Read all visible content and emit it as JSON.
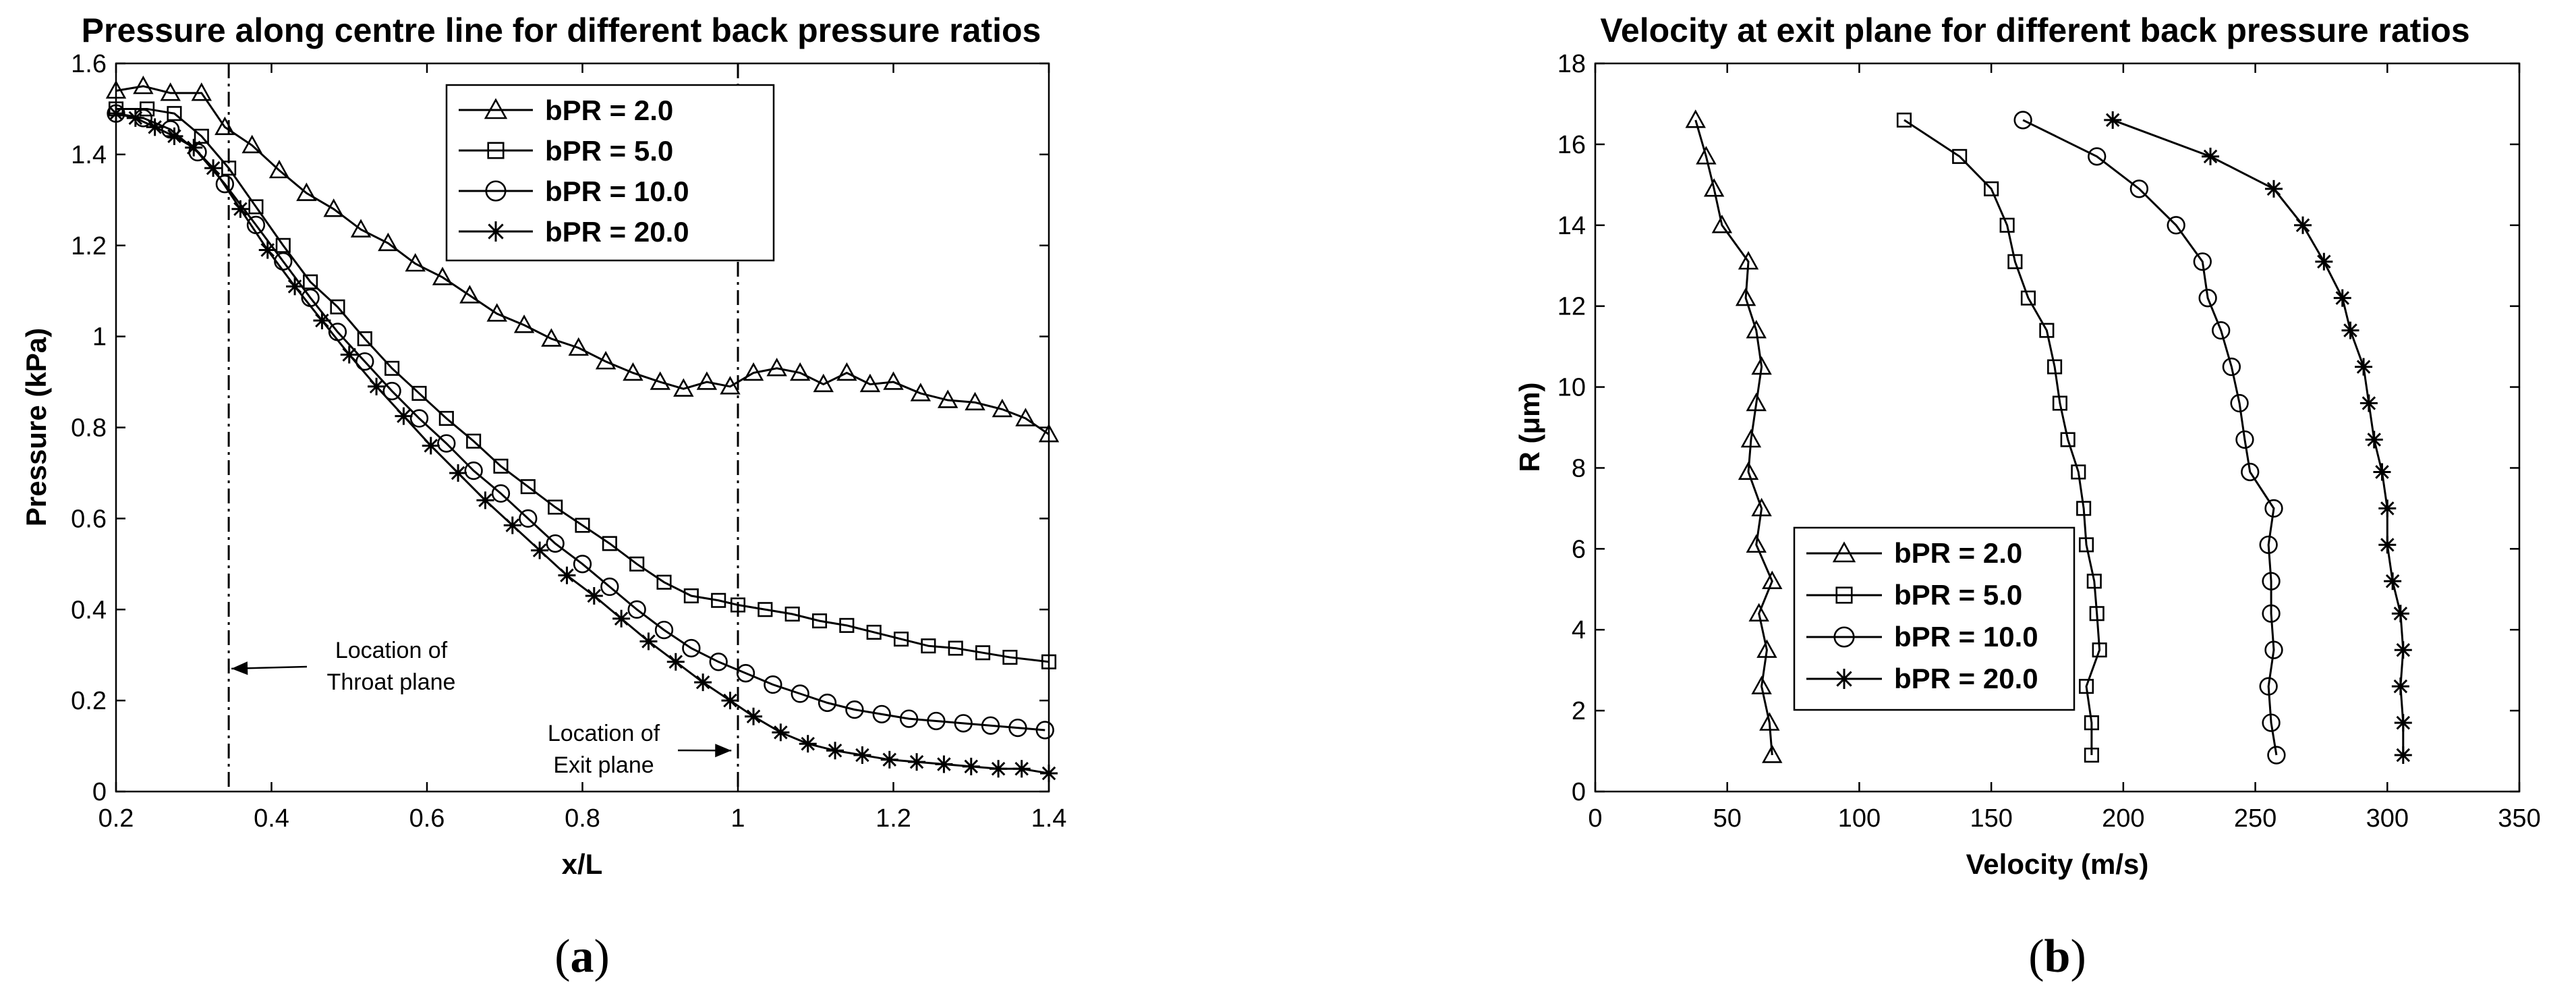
{
  "chart_data": [
    {
      "type": "line",
      "title": "Pressure along centre line for different back pressure ratios",
      "xlabel": "x/L",
      "ylabel": "Pressure (kPa)",
      "xlim": [
        0.2,
        1.4
      ],
      "ylim": [
        0,
        1.6
      ],
      "xticks": [
        0.2,
        0.4,
        0.6,
        0.8,
        1.0,
        1.2,
        1.4
      ],
      "xtick_labels": [
        "0.2",
        "0.4",
        "0.6",
        "0.8",
        "1",
        "1.2",
        "1.4"
      ],
      "yticks": [
        0,
        0.2,
        0.4,
        0.6,
        0.8,
        1.0,
        1.2,
        1.4,
        1.6
      ],
      "ytick_labels": [
        "0",
        "0.2",
        "0.4",
        "0.6",
        "0.8",
        "1",
        "1.2",
        "1.4",
        "1.6"
      ],
      "legend_position": "top-right",
      "grid": false,
      "caption_letter": "a",
      "vertical_lines": [
        0.345,
        1.0
      ],
      "annotations": [
        {
          "lines": [
            "Location of",
            "Throat plane"
          ],
          "x": 0.52,
          "y": 0.28,
          "arrow_to": [
            0.345,
            0.27
          ]
        },
        {
          "lines": [
            "Location of",
            "Exit plane"
          ],
          "x": 0.86,
          "y": 0.14,
          "arrow_to": [
            0.995,
            0.09
          ]
        }
      ],
      "series": [
        {
          "name": "bPR = 2.0",
          "marker": "triangle",
          "x": [
            0.2,
            0.235,
            0.27,
            0.31,
            0.34,
            0.375,
            0.41,
            0.445,
            0.48,
            0.515,
            0.55,
            0.585,
            0.62,
            0.655,
            0.69,
            0.725,
            0.76,
            0.795,
            0.83,
            0.865,
            0.9,
            0.93,
            0.96,
            0.99,
            1.02,
            1.05,
            1.08,
            1.11,
            1.14,
            1.17,
            1.2,
            1.235,
            1.27,
            1.305,
            1.34,
            1.37,
            1.4
          ],
          "y": [
            1.54,
            1.55,
            1.535,
            1.535,
            1.46,
            1.42,
            1.365,
            1.315,
            1.28,
            1.235,
            1.205,
            1.16,
            1.13,
            1.09,
            1.05,
            1.025,
            0.995,
            0.975,
            0.945,
            0.92,
            0.9,
            0.885,
            0.9,
            0.89,
            0.92,
            0.93,
            0.92,
            0.895,
            0.92,
            0.895,
            0.9,
            0.875,
            0.86,
            0.855,
            0.84,
            0.82,
            0.785
          ]
        },
        {
          "name": "bPR = 5.0",
          "marker": "square",
          "x": [
            0.2,
            0.24,
            0.275,
            0.31,
            0.345,
            0.38,
            0.415,
            0.45,
            0.485,
            0.52,
            0.555,
            0.59,
            0.625,
            0.66,
            0.695,
            0.73,
            0.765,
            0.8,
            0.835,
            0.87,
            0.905,
            0.94,
            0.975,
            1.0,
            1.035,
            1.07,
            1.105,
            1.14,
            1.175,
            1.21,
            1.245,
            1.28,
            1.315,
            1.35,
            1.4
          ],
          "y": [
            1.5,
            1.5,
            1.49,
            1.44,
            1.37,
            1.285,
            1.2,
            1.12,
            1.065,
            0.995,
            0.93,
            0.875,
            0.82,
            0.77,
            0.715,
            0.67,
            0.625,
            0.585,
            0.545,
            0.5,
            0.46,
            0.43,
            0.42,
            0.41,
            0.4,
            0.39,
            0.375,
            0.365,
            0.35,
            0.335,
            0.32,
            0.315,
            0.305,
            0.295,
            0.285
          ]
        },
        {
          "name": "bPR = 10.0",
          "marker": "circle",
          "x": [
            0.2,
            0.235,
            0.27,
            0.305,
            0.34,
            0.38,
            0.415,
            0.45,
            0.485,
            0.52,
            0.555,
            0.59,
            0.625,
            0.66,
            0.695,
            0.73,
            0.765,
            0.8,
            0.835,
            0.87,
            0.905,
            0.94,
            0.975,
            1.01,
            1.045,
            1.08,
            1.115,
            1.15,
            1.185,
            1.22,
            1.255,
            1.29,
            1.325,
            1.36,
            1.395
          ],
          "y": [
            1.49,
            1.48,
            1.455,
            1.405,
            1.335,
            1.245,
            1.165,
            1.085,
            1.01,
            0.945,
            0.88,
            0.82,
            0.765,
            0.705,
            0.655,
            0.6,
            0.545,
            0.5,
            0.45,
            0.4,
            0.355,
            0.315,
            0.285,
            0.26,
            0.235,
            0.215,
            0.195,
            0.18,
            0.17,
            0.16,
            0.155,
            0.15,
            0.145,
            0.14,
            0.135
          ]
        },
        {
          "name": "bPR = 20.0",
          "marker": "star",
          "x": [
            0.2,
            0.225,
            0.25,
            0.275,
            0.3,
            0.325,
            0.36,
            0.395,
            0.43,
            0.465,
            0.5,
            0.535,
            0.57,
            0.605,
            0.64,
            0.675,
            0.71,
            0.745,
            0.78,
            0.815,
            0.85,
            0.885,
            0.92,
            0.955,
            0.99,
            1.02,
            1.055,
            1.09,
            1.125,
            1.16,
            1.195,
            1.23,
            1.265,
            1.3,
            1.335,
            1.365,
            1.4
          ],
          "y": [
            1.49,
            1.48,
            1.46,
            1.44,
            1.415,
            1.37,
            1.28,
            1.19,
            1.11,
            1.035,
            0.96,
            0.89,
            0.825,
            0.76,
            0.7,
            0.64,
            0.585,
            0.53,
            0.475,
            0.43,
            0.38,
            0.33,
            0.285,
            0.24,
            0.2,
            0.165,
            0.13,
            0.105,
            0.09,
            0.08,
            0.07,
            0.065,
            0.06,
            0.055,
            0.05,
            0.05,
            0.04
          ]
        }
      ]
    },
    {
      "type": "line",
      "title": "Velocity at exit plane for different back pressure ratios",
      "xlabel": "Velocity (m/s)",
      "ylabel": "R (μm)",
      "xlim": [
        0,
        350
      ],
      "ylim": [
        0,
        18
      ],
      "xticks": [
        0,
        50,
        100,
        150,
        200,
        250,
        300,
        350
      ],
      "xtick_labels": [
        "0",
        "50",
        "100",
        "150",
        "200",
        "250",
        "300",
        "350"
      ],
      "yticks": [
        0,
        2,
        4,
        6,
        8,
        10,
        12,
        14,
        16,
        18
      ],
      "ytick_labels": [
        "0",
        "2",
        "4",
        "6",
        "8",
        "10",
        "12",
        "14",
        "16",
        "18"
      ],
      "legend_position": "bottom-left",
      "grid": false,
      "caption_letter": "b",
      "series": [
        {
          "name": "bPR = 2.0",
          "marker": "triangle",
          "x": [
            38,
            42,
            45,
            48,
            58,
            57,
            61,
            63,
            61,
            59,
            58,
            63,
            61,
            67,
            62,
            65,
            63,
            66,
            67
          ],
          "y": [
            16.6,
            15.7,
            14.9,
            14.0,
            13.1,
            12.2,
            11.4,
            10.5,
            9.6,
            8.7,
            7.9,
            7.0,
            6.1,
            5.2,
            4.4,
            3.5,
            2.6,
            1.7,
            0.9
          ]
        },
        {
          "name": "bPR = 5.0",
          "marker": "square",
          "x": [
            117,
            138,
            150,
            156,
            159,
            164,
            171,
            174,
            176,
            179,
            183,
            185,
            186,
            189,
            190,
            191,
            186,
            188,
            188
          ],
          "y": [
            16.6,
            15.7,
            14.9,
            14.0,
            13.1,
            12.2,
            11.4,
            10.5,
            9.6,
            8.7,
            7.9,
            7.0,
            6.1,
            5.2,
            4.4,
            3.5,
            2.6,
            1.7,
            0.9
          ]
        },
        {
          "name": "bPR = 10.0",
          "marker": "circle",
          "x": [
            162,
            190,
            206,
            220,
            230,
            232,
            237,
            241,
            244,
            246,
            248,
            257,
            255,
            256,
            256,
            257,
            255,
            256,
            258
          ],
          "y": [
            16.6,
            15.7,
            14.9,
            14.0,
            13.1,
            12.2,
            11.4,
            10.5,
            9.6,
            8.7,
            7.9,
            7.0,
            6.1,
            5.2,
            4.4,
            3.5,
            2.6,
            1.7,
            0.9
          ]
        },
        {
          "name": "bPR = 20.0",
          "marker": "star",
          "x": [
            196,
            233,
            257,
            268,
            276,
            283,
            286,
            291,
            293,
            295,
            298,
            300,
            300,
            302,
            305,
            306,
            305,
            306,
            306
          ],
          "y": [
            16.6,
            15.7,
            14.9,
            14.0,
            13.1,
            12.2,
            11.4,
            10.5,
            9.6,
            8.7,
            7.9,
            7.0,
            6.1,
            5.2,
            4.4,
            3.5,
            2.6,
            1.7,
            0.9
          ]
        }
      ]
    }
  ]
}
